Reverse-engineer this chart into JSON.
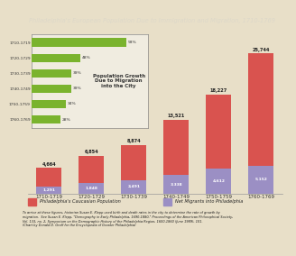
{
  "title": "Philadelphia's European Population Due to Immigration and Migration, 1710-1769",
  "categories": [
    "1710-1719",
    "1720-1729",
    "1730-1739",
    "1740-1749",
    "1750-1759",
    "1760-1769"
  ],
  "caucasian_pop": [
    4664,
    6854,
    8874,
    13521,
    18227,
    25744
  ],
  "net_migrants": [
    1291,
    1848,
    2491,
    3338,
    4612,
    5152
  ],
  "caucasian_color": "#d9534f",
  "migrant_color": "#9b8fc4",
  "bg_color": "#e8dfc8",
  "title_bg_color": "#2a2a2a",
  "title_text_color": "#ddd8c8",
  "bar_width": 0.6,
  "inset_periods": [
    "1710-1719",
    "1720-1729",
    "1730-1739",
    "1740-1749",
    "1750-1759",
    "1760-1769"
  ],
  "inset_values": [
    93,
    48,
    39,
    39,
    34,
    28
  ],
  "inset_bar_color": "#7ab32e",
  "inset_text": "Population Growth\nDue to Migration\ninto the City",
  "legend_caucasian": "Philadelphia's Caucasian Population",
  "legend_migrants": "Net Migrants into Philadelphia",
  "footnote": "To arrive at these figures, historian Susan E. Klepp used birth and death rates in the city to determine the rate of growth by\nmigration.  See Susan E. Klepp, \"Demography in Early Philadelphia, 1690-1880,\" Proceedings of the American Philosophical Society,\nVol. 133, no. 2, Symposium on the Demographic History of the Philadelphia Region, 1600-1860 (June 1989), 101.\n(Chart by Donald D. Groff for the Encyclopedia of Greater Philadelphia)",
  "ylim": [
    0,
    30000
  ],
  "footnote_bg": "#c8c0a8"
}
